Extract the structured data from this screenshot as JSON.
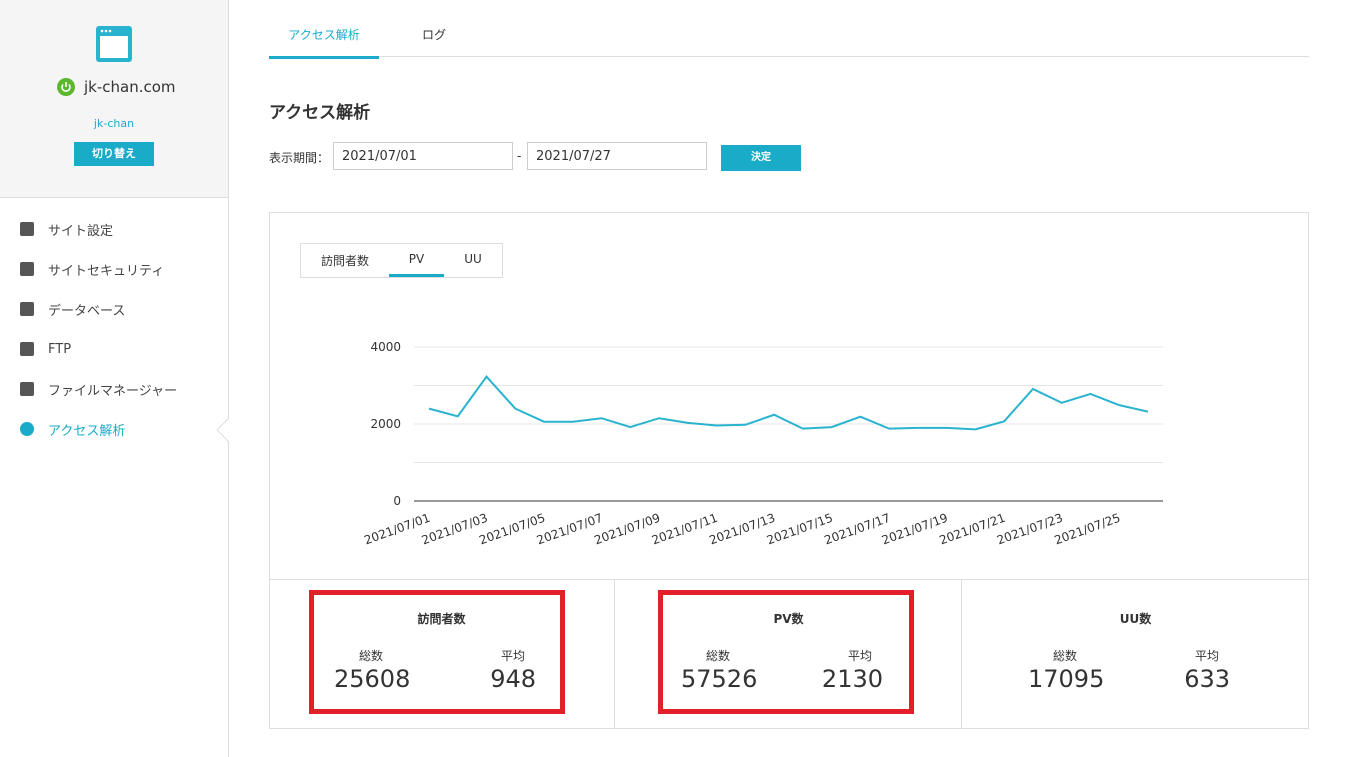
{
  "sidebar": {
    "site": "jk-chan.com",
    "user": "jk-chan",
    "switch_button": "切り替え",
    "menu": [
      "サイト設定",
      "サイトセキュリティ",
      "データベース",
      "FTP",
      "ファイルマネージャー",
      "アクセス解析"
    ],
    "active": 5
  },
  "tabs": [
    "アクセス解析",
    "ログ"
  ],
  "heading": "アクセス解析",
  "period": {
    "label": "表示期間：",
    "start": "2021/07/01",
    "separator": "-",
    "end": "2021/07/27",
    "button": "決定"
  },
  "chart_tabs": [
    "訪問者数",
    "PV",
    "UU"
  ],
  "chart_data": {
    "type": "line",
    "color": "#29b3cf",
    "categories": [
      "2021/07/01",
      null,
      "2021/07/03",
      null,
      "2021/07/05",
      null,
      "2021/07/07",
      null,
      "2021/07/09",
      null,
      "2021/07/11",
      null,
      "2021/07/13",
      null,
      "2021/07/15",
      null,
      "2021/07/17",
      null,
      "2021/07/19",
      null,
      "2021/07/21",
      null,
      "2021/07/23",
      null,
      "2021/07/25",
      null
    ],
    "values": [
      2400,
      2200,
      3230,
      2400,
      2060,
      2060,
      2150,
      1920,
      2150,
      2030,
      1960,
      1980,
      2240,
      1880,
      1920,
      2190,
      1880,
      1900,
      1900,
      1860,
      2070,
      2910,
      2550,
      2780,
      2490,
      2320
    ],
    "ylim": [
      0,
      4000
    ],
    "yticks": [
      0,
      2000,
      4000
    ],
    "minor_yticks": [
      1000,
      3000
    ],
    "grid": true
  },
  "stats": [
    {
      "title": "訪問者数",
      "total_label": "総数",
      "total": 25608,
      "avg_label": "平均",
      "avg": 948,
      "highlighted": true
    },
    {
      "title": "PV数",
      "total_label": "総数",
      "total": 57526,
      "avg_label": "平均",
      "avg": 2130,
      "highlighted": true
    },
    {
      "title": "UU数",
      "total_label": "総数",
      "total": 17095,
      "avg_label": "平均",
      "avg": 633,
      "highlighted": false
    }
  ]
}
